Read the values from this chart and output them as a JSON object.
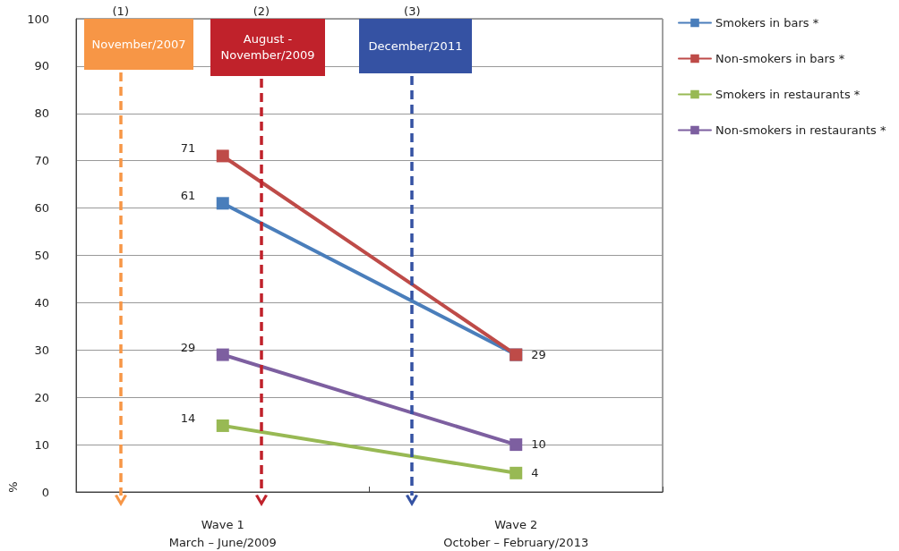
{
  "chart_data": {
    "type": "line",
    "categories": [
      "Wave 1\nMarch – June/2009",
      "Wave 2\nOctober – February/2013"
    ],
    "ylabel": "%",
    "ylim": [
      0,
      100
    ],
    "yticks": [
      0,
      10,
      20,
      30,
      40,
      50,
      60,
      70,
      80,
      90,
      100
    ],
    "grid": "y",
    "legend": "top right",
    "marker": "square",
    "line_style": "solid",
    "annotations": [
      "(1)",
      "November/2007",
      "(2)",
      "August -\nNovember/2009",
      "(3)",
      "December/2011"
    ],
    "series": [
      {
        "name": "Smokers in bars *",
        "color": "#4a7ebb",
        "values": [
          61,
          29
        ],
        "value_labels": [
          "61",
          "29"
        ]
      },
      {
        "name": "Non-smokers in bars *",
        "color": "#be4b48",
        "values": [
          71,
          29
        ],
        "value_labels": [
          "71",
          null
        ]
      },
      {
        "name": "Smokers in restaurants *",
        "color": "#98b954",
        "values": [
          14,
          4
        ],
        "value_labels": [
          "14",
          "4"
        ]
      },
      {
        "name": "Non-smokers in restaurants *",
        "color": "#7d5fa0",
        "values": [
          29,
          10
        ],
        "value_labels": [
          "29",
          "10"
        ]
      }
    ]
  }
}
